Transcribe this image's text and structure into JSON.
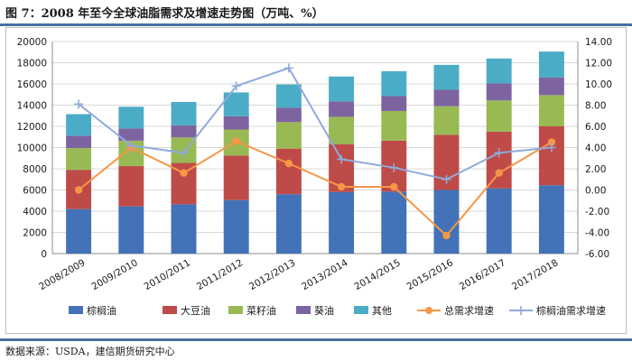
{
  "figure": {
    "title": "图 7：2008 年至今全球油脂需求及增速走势图（万吨、%）",
    "source": "数据来源：USDA，建信期货研究中心"
  },
  "chart_data": {
    "type": "bar",
    "stacked": true,
    "categories": [
      "2008/2009",
      "2009/2010",
      "2010/2011",
      "2011/2012",
      "2012/2013",
      "2013/2014",
      "2014/2015",
      "2015/2016",
      "2016/2017",
      "2017/2018"
    ],
    "left_axis": {
      "ylim": [
        0,
        20000
      ],
      "ticks": [
        0,
        2000,
        4000,
        6000,
        8000,
        10000,
        12000,
        14000,
        16000,
        18000,
        20000
      ]
    },
    "right_axis": {
      "ylim": [
        -6,
        14
      ],
      "ticks": [
        "-6.00",
        "-4.00",
        "-2.00",
        "0.00",
        "2.00",
        "4.00",
        "6.00",
        "8.00",
        "10.00",
        "12.00",
        "14.00"
      ]
    },
    "grid": true,
    "legend_position": "bottom",
    "series": [
      {
        "name": "棕榈油",
        "type": "bar",
        "axis": "left",
        "color": "#4372b8",
        "values": [
          4200,
          4450,
          4650,
          5050,
          5600,
          5800,
          5850,
          6000,
          6150,
          6450
        ]
      },
      {
        "name": "大豆油",
        "type": "bar",
        "axis": "left",
        "color": "#be4b48",
        "values": [
          3700,
          3800,
          3900,
          4200,
          4300,
          4500,
          4800,
          5200,
          5350,
          5550
        ]
      },
      {
        "name": "菜籽油",
        "type": "bar",
        "axis": "left",
        "color": "#98b954",
        "values": [
          2050,
          2400,
          2400,
          2450,
          2500,
          2600,
          2800,
          2700,
          2950,
          2950
        ]
      },
      {
        "name": "葵油",
        "type": "bar",
        "axis": "left",
        "color": "#7e63a1",
        "values": [
          1150,
          1150,
          1150,
          1250,
          1350,
          1450,
          1400,
          1550,
          1600,
          1650
        ]
      },
      {
        "name": "其他",
        "type": "bar",
        "axis": "left",
        "color": "#4bacc6",
        "values": [
          2050,
          2050,
          2200,
          2250,
          2200,
          2350,
          2350,
          2350,
          2350,
          2450
        ]
      },
      {
        "name": "总需求增速",
        "type": "line",
        "axis": "right",
        "color": "#f79646",
        "marker": "circle",
        "values": [
          0.0,
          4.0,
          1.6,
          4.6,
          2.5,
          0.3,
          0.3,
          -4.3,
          1.6,
          4.5
        ]
      },
      {
        "name": "棕榈油需求增速",
        "type": "line",
        "axis": "right",
        "color": "#8faadc",
        "marker": "cross",
        "values": [
          8.1,
          4.2,
          3.5,
          9.8,
          11.5,
          2.9,
          2.1,
          1.0,
          3.5,
          4.0
        ]
      }
    ]
  }
}
